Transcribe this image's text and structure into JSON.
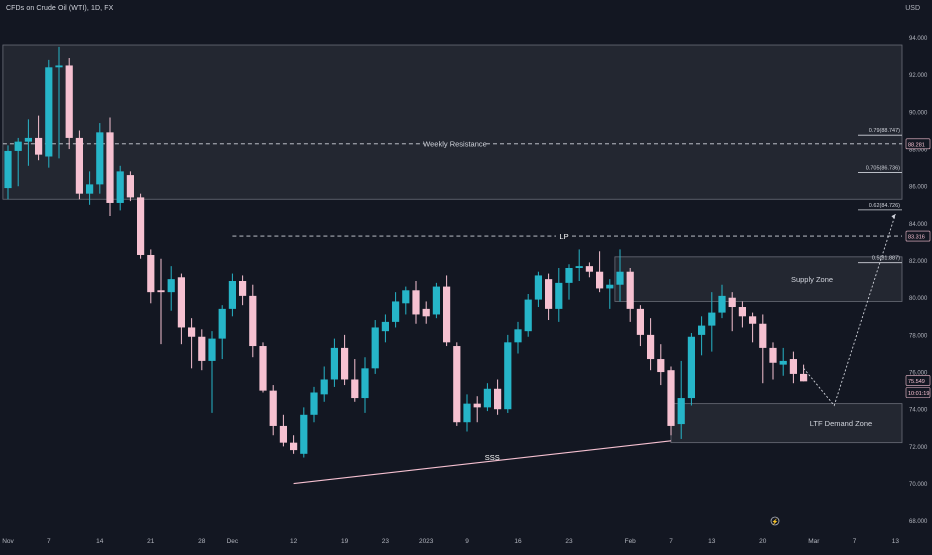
{
  "header": {
    "title": "CFDs on Crude Oil (WTI), 1D, FX",
    "currency": "USD"
  },
  "colors": {
    "background": "#131722",
    "up": "#26b5c8",
    "down": "#f6c1d1",
    "zone_fill": "#2a2d37",
    "zone_stroke": "#6a6d78",
    "line": "#d1d4dc",
    "trendline": "#f6c1d1"
  },
  "chart_data": {
    "type": "candlestick",
    "ylim": [
      67.5,
      95
    ],
    "y_ticks": [
      "94.000",
      "92.000",
      "90.000",
      "88.000",
      "86.000",
      "84.000",
      "82.000",
      "80.000",
      "78.000",
      "76.000",
      "74.000",
      "72.000",
      "70.000",
      "68.000"
    ],
    "x_ticks": [
      {
        "label": "Nov",
        "i": 0
      },
      {
        "label": "7",
        "i": 4
      },
      {
        "label": "14",
        "i": 9
      },
      {
        "label": "21",
        "i": 14
      },
      {
        "label": "28",
        "i": 19
      },
      {
        "label": "Dec",
        "i": 22
      },
      {
        "label": "12",
        "i": 28
      },
      {
        "label": "19",
        "i": 33
      },
      {
        "label": "23",
        "i": 37
      },
      {
        "label": "2023",
        "i": 41
      },
      {
        "label": "9",
        "i": 45
      },
      {
        "label": "16",
        "i": 50
      },
      {
        "label": "23",
        "i": 55
      },
      {
        "label": "Feb",
        "i": 61
      },
      {
        "label": "7",
        "i": 65
      },
      {
        "label": "13",
        "i": 69
      },
      {
        "label": "20",
        "i": 74
      },
      {
        "label": "Mar",
        "i": 79
      },
      {
        "label": "7",
        "i": 83
      },
      {
        "label": "13",
        "i": 87
      }
    ],
    "candles": [
      [
        85.9,
        88.2,
        85.3,
        87.9
      ],
      [
        87.9,
        88.6,
        86.0,
        88.4
      ],
      [
        88.4,
        89.6,
        87.1,
        88.6
      ],
      [
        88.6,
        89.8,
        87.4,
        87.7
      ],
      [
        87.6,
        92.8,
        87.0,
        92.4
      ],
      [
        92.4,
        93.5,
        87.5,
        92.5
      ],
      [
        92.5,
        92.9,
        88.0,
        88.6
      ],
      [
        88.6,
        89.0,
        85.3,
        85.6
      ],
      [
        85.6,
        86.8,
        85.0,
        86.1
      ],
      [
        86.1,
        89.4,
        85.6,
        88.9
      ],
      [
        88.9,
        89.7,
        84.4,
        85.1
      ],
      [
        85.1,
        87.1,
        84.7,
        86.8
      ],
      [
        86.6,
        86.8,
        85.2,
        85.4
      ],
      [
        85.4,
        85.6,
        82.1,
        82.3
      ],
      [
        82.3,
        82.6,
        79.7,
        80.3
      ],
      [
        80.4,
        82.1,
        77.5,
        80.3
      ],
      [
        80.3,
        81.7,
        79.3,
        81.0
      ],
      [
        81.1,
        81.3,
        77.5,
        78.4
      ],
      [
        78.4,
        78.9,
        76.2,
        77.9
      ],
      [
        77.9,
        78.3,
        76.1,
        76.6
      ],
      [
        76.6,
        78.2,
        73.8,
        77.8
      ],
      [
        77.8,
        79.6,
        76.7,
        79.4
      ],
      [
        79.4,
        81.3,
        79.0,
        80.9
      ],
      [
        80.9,
        81.2,
        79.6,
        80.1
      ],
      [
        80.1,
        80.7,
        76.8,
        77.4
      ],
      [
        77.4,
        77.6,
        74.9,
        75.0
      ],
      [
        75.0,
        75.3,
        72.6,
        73.1
      ],
      [
        73.1,
        73.7,
        72.0,
        72.2
      ],
      [
        72.2,
        72.6,
        71.6,
        71.8
      ],
      [
        71.6,
        74.1,
        71.4,
        73.7
      ],
      [
        73.7,
        75.2,
        73.3,
        74.9
      ],
      [
        74.8,
        76.3,
        74.4,
        75.6
      ],
      [
        75.6,
        77.8,
        75.2,
        77.3
      ],
      [
        77.3,
        78.0,
        75.3,
        75.6
      ],
      [
        75.6,
        76.7,
        74.4,
        74.6
      ],
      [
        74.6,
        76.8,
        73.8,
        76.2
      ],
      [
        76.2,
        78.8,
        75.9,
        78.4
      ],
      [
        78.2,
        79.1,
        77.6,
        78.7
      ],
      [
        78.7,
        80.3,
        78.4,
        79.8
      ],
      [
        79.7,
        80.6,
        79.1,
        80.4
      ],
      [
        80.4,
        80.9,
        78.6,
        79.1
      ],
      [
        79.4,
        79.8,
        78.6,
        79.0
      ],
      [
        79.1,
        80.8,
        78.9,
        80.6
      ],
      [
        80.6,
        81.2,
        77.4,
        77.6
      ],
      [
        77.4,
        77.6,
        73.1,
        73.3
      ],
      [
        73.3,
        74.8,
        72.8,
        74.3
      ],
      [
        74.3,
        74.7,
        73.3,
        74.1
      ],
      [
        74.1,
        75.4,
        73.9,
        75.1
      ],
      [
        75.1,
        75.6,
        73.7,
        74.0
      ],
      [
        74.0,
        78.0,
        73.8,
        77.6
      ],
      [
        77.6,
        78.7,
        77.0,
        78.3
      ],
      [
        78.2,
        80.2,
        77.9,
        79.9
      ],
      [
        79.9,
        81.4,
        79.5,
        81.2
      ],
      [
        81.0,
        81.3,
        78.8,
        79.4
      ],
      [
        79.4,
        81.6,
        78.7,
        80.8
      ],
      [
        80.8,
        81.8,
        79.9,
        81.6
      ],
      [
        81.6,
        82.6,
        80.9,
        81.7
      ],
      [
        81.7,
        81.9,
        81.1,
        81.4
      ],
      [
        81.4,
        82.5,
        80.3,
        80.5
      ],
      [
        80.5,
        81.0,
        79.4,
        80.7
      ],
      [
        80.7,
        82.6,
        79.8,
        81.4
      ],
      [
        81.4,
        81.6,
        78.7,
        79.4
      ],
      [
        79.4,
        79.6,
        77.4,
        78.0
      ],
      [
        78.0,
        78.9,
        76.1,
        76.7
      ],
      [
        76.7,
        77.5,
        75.3,
        76.0
      ],
      [
        76.1,
        76.3,
        72.6,
        73.1
      ],
      [
        73.2,
        76.6,
        72.4,
        74.6
      ],
      [
        74.6,
        78.1,
        74.2,
        77.9
      ],
      [
        78.0,
        79.0,
        76.9,
        78.5
      ],
      [
        78.5,
        80.3,
        77.1,
        79.2
      ],
      [
        79.2,
        80.7,
        78.9,
        80.1
      ],
      [
        80.0,
        80.3,
        78.2,
        79.5
      ],
      [
        79.5,
        79.8,
        78.4,
        79.0
      ],
      [
        79.0,
        79.2,
        77.6,
        78.6
      ],
      [
        78.6,
        79.1,
        75.4,
        77.3
      ],
      [
        77.3,
        77.6,
        75.6,
        76.5
      ],
      [
        76.4,
        77.3,
        75.8,
        76.6
      ],
      [
        76.7,
        77.1,
        75.4,
        75.9
      ],
      [
        75.9,
        76.4,
        75.5,
        75.5
      ]
    ],
    "zones": [
      {
        "name": "Weekly Resistance",
        "label": "Weekly Resistance",
        "top": 93.6,
        "bottom": 85.3,
        "from_i": -0.5,
        "to": "right",
        "mid_line": 88.3
      },
      {
        "name": "Supply Zone",
        "label": "Supply Zone",
        "top": 82.2,
        "bottom": 79.8,
        "from_i": 59.5,
        "to": "right"
      },
      {
        "name": "LTF Demand Zone",
        "label": "LTF Demand Zone",
        "top": 74.3,
        "bottom": 72.2,
        "from_i": 65,
        "to": "right"
      }
    ],
    "levels": [
      {
        "label": "LP",
        "value": 83.316,
        "from_i": 22,
        "dash": true
      },
      {
        "label": "Weekly Resistance",
        "value": 88.281,
        "from_i": -0.5,
        "dash": true
      }
    ],
    "fib_levels": [
      {
        "label": "0.79(88.747)",
        "value": 88.747
      },
      {
        "label": "0.705(86.736)",
        "value": 86.736
      },
      {
        "label": "0.62(84.726)",
        "value": 84.726
      },
      {
        "label": "0.5(81.887)",
        "value": 81.887
      }
    ],
    "trendline": {
      "label": "SSS",
      "from": [
        28,
        70.0
      ],
      "to": [
        65,
        72.3
      ]
    },
    "projection": [
      [
        78,
        76.2
      ],
      [
        81,
        74.2
      ],
      [
        87,
        84.5
      ]
    ],
    "price_tags": [
      {
        "label": "88.281",
        "value": 88.281,
        "style": "pink"
      },
      {
        "label": "83.316",
        "value": 83.316,
        "style": "pink"
      },
      {
        "label": "75.549",
        "value": 75.549,
        "style": "pink"
      },
      {
        "label": "10:01:19",
        "value": 74.9,
        "style": "pink"
      }
    ]
  }
}
